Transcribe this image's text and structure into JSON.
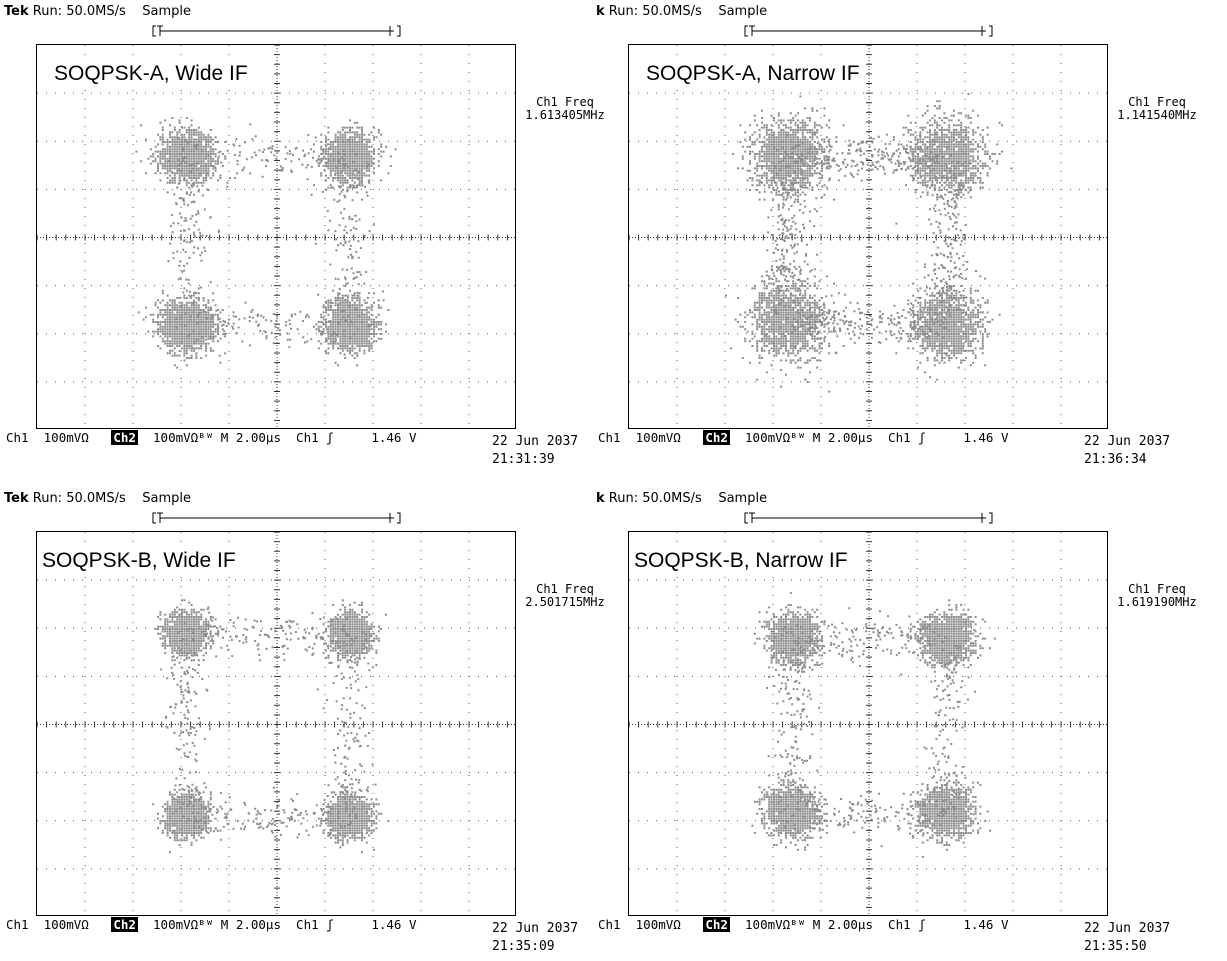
{
  "panels": [
    {
      "header_prefix": "Tek",
      "header": "Run: 50.0MS/s    Sample",
      "label": "SOQPSK-A, Wide IF",
      "freq_title": "Ch1 Freq",
      "freq_value": "1.613405MHz",
      "ch1": "Ch1",
      "ch1_scale": "100mVΩ",
      "ch2": "Ch2",
      "ch2_scale": "100mVΩᴮᵂ",
      "time": "M 2.00µs",
      "trig_ch": "Ch1",
      "trig_sym": "ʃ",
      "trig_level": "1.46 V",
      "date": "22 Jun 2037",
      "time_stamp": "21:31:39"
    },
    {
      "header_prefix": "k",
      "header": "Run: 50.0MS/s    Sample",
      "label": "SOQPSK-A, Narrow IF",
      "freq_title": "Ch1 Freq",
      "freq_value": "1.141540MHz",
      "ch1": "Ch1",
      "ch1_scale": "100mVΩ",
      "ch2": "Ch2",
      "ch2_scale": "100mVΩᴮᵂ",
      "time": "M 2.00µs",
      "trig_ch": "Ch1",
      "trig_sym": "ʃ",
      "trig_level": "1.46 V",
      "date": "22 Jun 2037",
      "time_stamp": "21:36:34"
    },
    {
      "header_prefix": "Tek",
      "header": "Run: 50.0MS/s    Sample",
      "label": "SOQPSK-B, Wide IF",
      "freq_title": "Ch1 Freq",
      "freq_value": "2.501715MHz",
      "ch1": "Ch1",
      "ch1_scale": "100mVΩ",
      "ch2": "Ch2",
      "ch2_scale": "100mVΩᴮᵂ",
      "time": "M 2.00µs",
      "trig_ch": "Ch1",
      "trig_sym": "ʃ",
      "trig_level": "1.46 V",
      "date": "22 Jun 2037",
      "time_stamp": "21:35:09"
    },
    {
      "header_prefix": "k",
      "header": "Run: 50.0MS/s    Sample",
      "label": "SOQPSK-B, Narrow IF",
      "freq_title": "Ch1 Freq",
      "freq_value": "1.619190MHz",
      "ch1": "Ch1",
      "ch1_scale": "100mVΩ",
      "ch2": "Ch2",
      "ch2_scale": "100mVΩᴮᵂ",
      "time": "M 2.00µs",
      "trig_ch": "Ch1",
      "trig_sym": "ʃ",
      "trig_level": "1.46 V",
      "date": "22 Jun 2037",
      "time_stamp": "21:35:50"
    }
  ],
  "chart_data": [
    {
      "type": "scatter",
      "title": "SOQPSK-A, Wide IF",
      "grid": true,
      "divisions": [
        10,
        8
      ],
      "xlim": [
        -5,
        5
      ],
      "ylim": [
        -4,
        4
      ],
      "units": "divisions",
      "clusters": [
        {
          "x": -1.9,
          "y": 1.7,
          "spread": [
            0.7,
            0.6
          ]
        },
        {
          "x": 1.5,
          "y": 1.7,
          "spread": [
            0.6,
            0.6
          ]
        },
        {
          "x": -1.9,
          "y": -1.8,
          "spread": [
            0.7,
            0.6
          ]
        },
        {
          "x": 1.5,
          "y": -1.8,
          "spread": [
            0.6,
            0.6
          ]
        }
      ],
      "trajectory_density": 0.5
    },
    {
      "type": "scatter",
      "title": "SOQPSK-A, Narrow IF",
      "grid": true,
      "divisions": [
        10,
        8
      ],
      "xlim": [
        -5,
        5
      ],
      "ylim": [
        -4,
        4
      ],
      "units": "divisions",
      "clusters": [
        {
          "x": -1.7,
          "y": 1.7,
          "spread": [
            0.9,
            0.9
          ]
        },
        {
          "x": 1.6,
          "y": 1.7,
          "spread": [
            0.9,
            0.9
          ]
        },
        {
          "x": -1.7,
          "y": -1.7,
          "spread": [
            0.9,
            0.9
          ]
        },
        {
          "x": 1.6,
          "y": -1.8,
          "spread": [
            0.8,
            0.8
          ]
        }
      ],
      "trajectory_density": 0.9
    },
    {
      "type": "scatter",
      "title": "SOQPSK-B, Wide IF",
      "grid": true,
      "divisions": [
        10,
        8
      ],
      "xlim": [
        -5,
        5
      ],
      "ylim": [
        -4,
        4
      ],
      "units": "divisions",
      "clusters": [
        {
          "x": -1.9,
          "y": 1.9,
          "spread": [
            0.5,
            0.5
          ]
        },
        {
          "x": 1.5,
          "y": 1.9,
          "spread": [
            0.5,
            0.5
          ]
        },
        {
          "x": -1.9,
          "y": -1.9,
          "spread": [
            0.5,
            0.5
          ]
        },
        {
          "x": 1.5,
          "y": -1.9,
          "spread": [
            0.5,
            0.5
          ]
        }
      ],
      "trajectory_density": 0.6
    },
    {
      "type": "scatter",
      "title": "SOQPSK-B, Narrow IF",
      "grid": true,
      "divisions": [
        10,
        8
      ],
      "xlim": [
        -5,
        5
      ],
      "ylim": [
        -4,
        4
      ],
      "units": "divisions",
      "clusters": [
        {
          "x": -1.6,
          "y": 1.8,
          "spread": [
            0.6,
            0.6
          ]
        },
        {
          "x": 1.6,
          "y": 1.8,
          "spread": [
            0.6,
            0.6
          ]
        },
        {
          "x": -1.6,
          "y": -1.8,
          "spread": [
            0.6,
            0.6
          ]
        },
        {
          "x": 1.6,
          "y": -1.8,
          "spread": [
            0.6,
            0.6
          ]
        }
      ],
      "trajectory_density": 0.6
    }
  ],
  "colors": {
    "dot": "#8c8c8c",
    "grid": "#555555"
  }
}
